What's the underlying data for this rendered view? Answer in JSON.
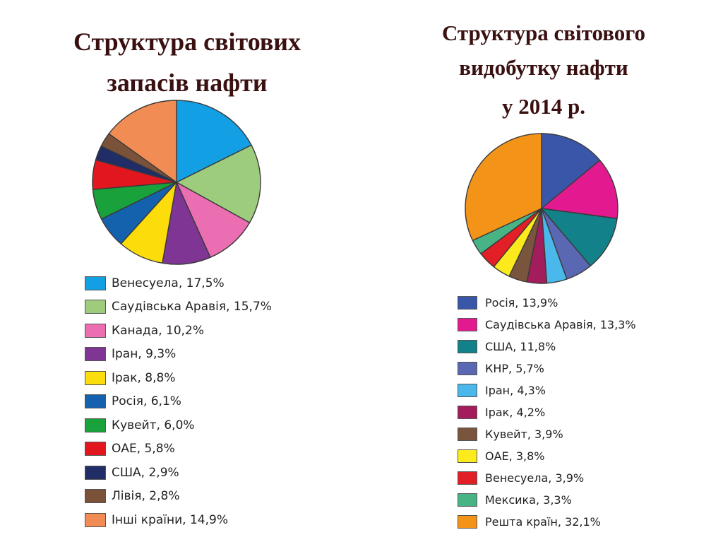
{
  "chart_data": [
    {
      "type": "pie",
      "title": "Структура світових запасів нафти",
      "title_lines": [
        "Структура світових",
        "запасів  нафти"
      ],
      "legend_position": "bottom",
      "slices": [
        {
          "label": "Венесуела, 17,5%",
          "value": 17.5,
          "color": "#129fe3"
        },
        {
          "label": "Саудівська Аравія, 15,7%",
          "value": 15.7,
          "color": "#9dcc7c"
        },
        {
          "label": "Канада, 10,2%",
          "value": 10.2,
          "color": "#ea6eb1"
        },
        {
          "label": "Іран, 9,3%",
          "value": 9.3,
          "color": "#7f3594"
        },
        {
          "label": "Ірак, 8,8%",
          "value": 8.8,
          "color": "#fcdc0b"
        },
        {
          "label": "Росія, 6,1%",
          "value": 6.1,
          "color": "#1461ad"
        },
        {
          "label": "Кувейт, 6,0%",
          "value": 6.0,
          "color": "#19a13b"
        },
        {
          "label": "ОАЕ, 5,8%",
          "value": 5.8,
          "color": "#e2161f"
        },
        {
          "label": "США, 2,9%",
          "value": 2.9,
          "color": "#202d66"
        },
        {
          "label": "Лівія, 2,8%",
          "value": 2.8,
          "color": "#7a523a"
        },
        {
          "label": "Інші країни, 14,9%",
          "value": 14.9,
          "color": "#f18c54"
        }
      ]
    },
    {
      "type": "pie",
      "title": "Структура світового видобутку нафти у 2014 р.",
      "title_lines": [
        "Структура світового",
        "видобутку нафти",
        "у 2014 р."
      ],
      "legend_position": "bottom",
      "slices": [
        {
          "label": "Росія, 13,9%",
          "value": 13.9,
          "color": "#3a56a8"
        },
        {
          "label": "Саудівська Аравія,  13,3%",
          "value": 13.3,
          "color": "#e31a8f"
        },
        {
          "label": "США, 11,8%",
          "value": 11.8,
          "color": "#138189"
        },
        {
          "label": "КНР, 5,7%",
          "value": 5.7,
          "color": "#5a68b3"
        },
        {
          "label": "Іран, 4,3%",
          "value": 4.3,
          "color": "#4ab8ea"
        },
        {
          "label": "Ірак, 4,2%",
          "value": 4.2,
          "color": "#a31c5b"
        },
        {
          "label": "Кувейт, 3,9%",
          "value": 3.9,
          "color": "#7a553d"
        },
        {
          "label": "ОАЕ, 3,8%",
          "value": 3.8,
          "color": "#fcea1c"
        },
        {
          "label": "Венесуела, 3,9%",
          "value": 3.9,
          "color": "#e21e26"
        },
        {
          "label": "Мексика, 3,3%",
          "value": 3.3,
          "color": "#48b485"
        },
        {
          "label": "Решта країн, 32,1%",
          "value": 32.1,
          "color": "#f39418"
        }
      ]
    }
  ]
}
